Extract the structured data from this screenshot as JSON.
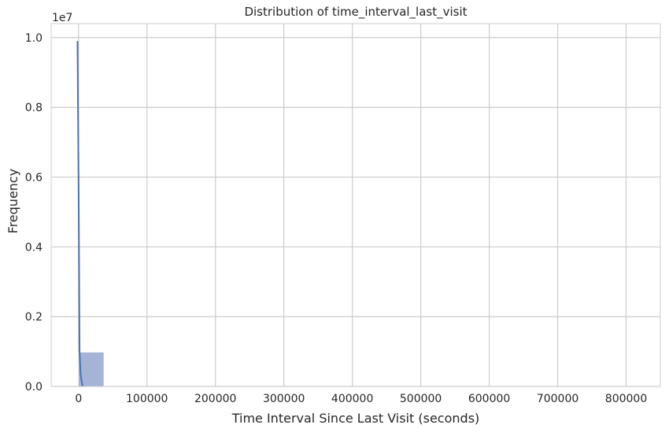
{
  "chart_data": {
    "type": "histogram",
    "title": "Distribution of time_interval_last_visit",
    "xlabel": "Time Interval Since Last Visit (seconds)",
    "ylabel": "Frequency",
    "y_offset_label": "1e7",
    "xlim": [
      -40000,
      850000
    ],
    "ylim": [
      0,
      1.04
    ],
    "y_scale": 10000000,
    "x_ticks": [
      0,
      100000,
      200000,
      300000,
      400000,
      500000,
      600000,
      700000,
      800000
    ],
    "x_tick_labels": [
      "0",
      "100000",
      "200000",
      "300000",
      "400000",
      "500000",
      "600000",
      "700000",
      "800000"
    ],
    "y_ticks": [
      0.0,
      0.2,
      0.4,
      0.6,
      0.8,
      1.0
    ],
    "y_tick_labels": [
      "0.0",
      "0.2",
      "0.4",
      "0.6",
      "0.8",
      "1.0"
    ],
    "grid": true,
    "bars": [
      {
        "x0": 0,
        "x1": 37000,
        "value": 0.098
      }
    ],
    "kde": {
      "x": [
        -1500,
        0,
        1500,
        3000,
        4500,
        6000
      ],
      "y": [
        0.99,
        0.6,
        0.1,
        0.035,
        0.015,
        0.0
      ]
    },
    "colors": {
      "bar": "#a5b4d6",
      "kde": "#4c72b0",
      "grid": "#cccccc",
      "frame": "#cccccc"
    }
  }
}
